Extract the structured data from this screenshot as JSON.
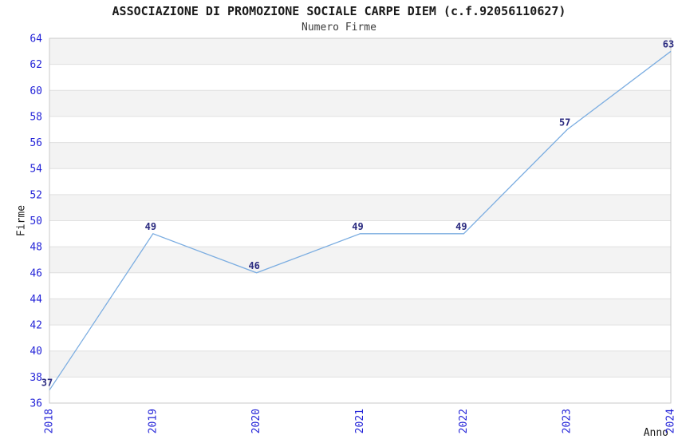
{
  "chart_data": {
    "type": "line",
    "title": "ASSOCIAZIONE DI PROMOZIONE SOCIALE CARPE DIEM (c.f.92056110627)",
    "subtitle": "Numero Firme",
    "xlabel": "Anno",
    "ylabel": "Firme",
    "categories": [
      "2018",
      "2019",
      "2020",
      "2021",
      "2022",
      "2023",
      "2024"
    ],
    "values": [
      37,
      49,
      46,
      49,
      49,
      57,
      63
    ],
    "ylim": [
      36,
      64
    ],
    "ytick_step": 2,
    "grid": true,
    "legend": "none",
    "layout_hints": {
      "x_tick_rotation_deg": -90,
      "alternating_horizontal_bands": true,
      "point_labels_shown": true
    },
    "colors": {
      "line": "#7bade1",
      "tick_label": "#2424d8",
      "value_label": "#2b2b80",
      "band": "#f3f3f3",
      "gridline": "#e0e0e0",
      "border": "#c8c8c8",
      "title_text": "#1a1a1a"
    }
  }
}
